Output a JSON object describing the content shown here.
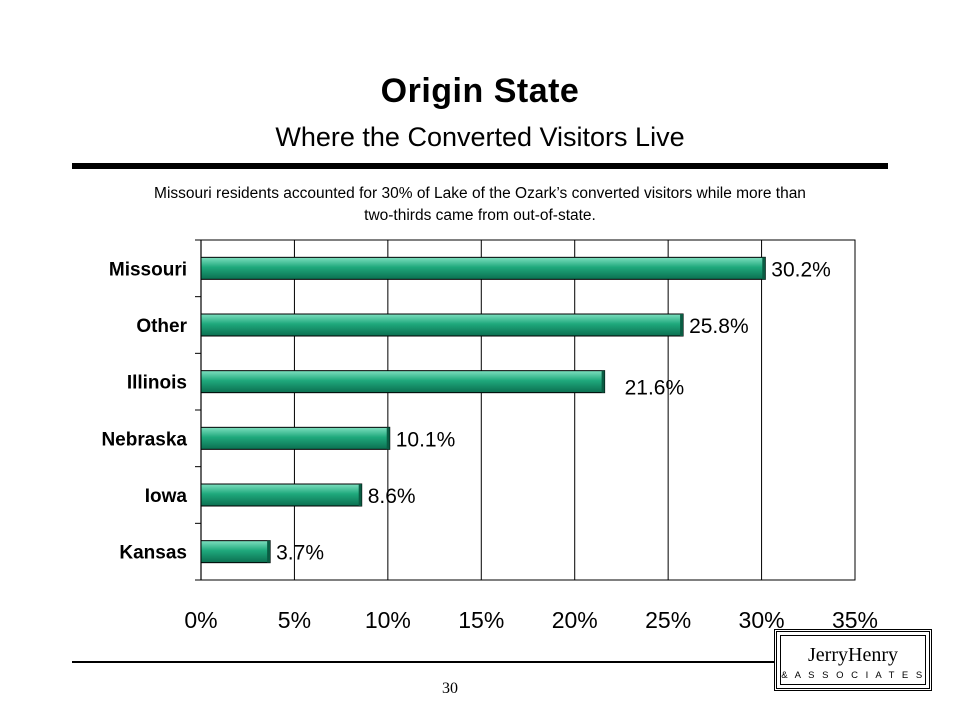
{
  "slide": {
    "title": "Origin State",
    "subtitle": "Where the Converted Visitors Live",
    "caption_line1": "Missouri residents accounted for 30% of Lake of the Ozark’s converted visitors while more than",
    "caption_line2": "two-thirds came from out-of-state.",
    "page_number": "30"
  },
  "logo": {
    "name": "JerryHenry",
    "tagline": "& A S S O C I A T E S"
  },
  "chart_data": {
    "type": "bar",
    "orientation": "horizontal",
    "categories": [
      "Missouri",
      "Other",
      "Illinois",
      "Nebraska",
      "Iowa",
      "Kansas"
    ],
    "values": [
      30.2,
      25.8,
      21.6,
      10.1,
      8.6,
      3.7
    ],
    "data_labels": [
      "30.2%",
      "25.8%",
      "21.6%",
      "10.1%",
      "8.6%",
      "3.7%"
    ],
    "x_ticks": [
      0,
      5,
      10,
      15,
      20,
      25,
      30,
      35
    ],
    "x_tick_labels": [
      "0%",
      "5%",
      "10%",
      "15%",
      "20%",
      "25%",
      "30%",
      "35%"
    ],
    "xlim": [
      0,
      35
    ],
    "grid": "vertical",
    "bar_color": "#1a9e74",
    "legend": "none"
  }
}
